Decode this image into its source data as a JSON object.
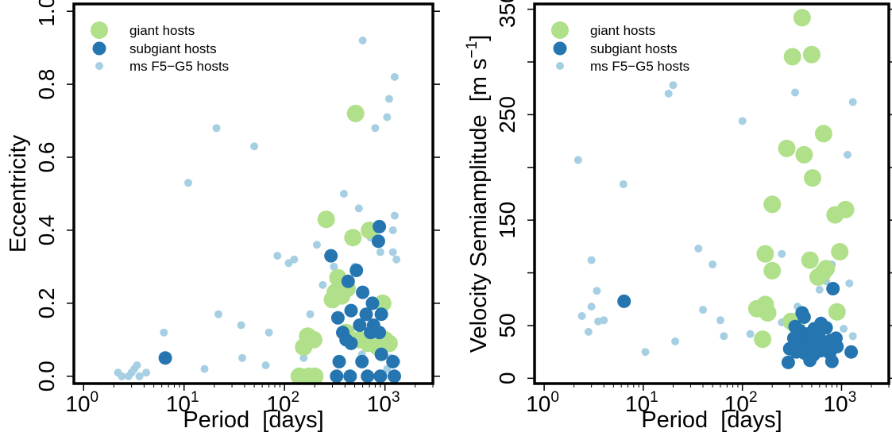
{
  "chart_data": [
    {
      "type": "scatter",
      "xscale": "log",
      "xlim": [
        0.8,
        3000
      ],
      "ylim": [
        -0.02,
        1.02
      ],
      "xlabel": "Period  [days]",
      "ylabel": "Eccentricity",
      "xticks": [
        {
          "value": 1,
          "base": "10",
          "exp": "0"
        },
        {
          "value": 10,
          "base": "10",
          "exp": "1"
        },
        {
          "value": 100,
          "base": "10",
          "exp": "2"
        },
        {
          "value": 1000,
          "base": "10",
          "exp": "3"
        }
      ],
      "yticks": [
        {
          "value": 0.0,
          "label": "0.0"
        },
        {
          "value": 0.2,
          "label": "0.2"
        },
        {
          "value": 0.4,
          "label": "0.4"
        },
        {
          "value": 0.6,
          "label": "0.6"
        },
        {
          "value": 0.8,
          "label": "0.8"
        },
        {
          "value": 1.0,
          "label": "1.0"
        }
      ],
      "legend": "top-left",
      "series": [
        {
          "name": "giant hosts",
          "color": "#b0e08a",
          "marker": "large",
          "points": [
            [
              510,
              0.72
            ],
            [
              260,
              0.43
            ],
            [
              480,
              0.38
            ],
            [
              700,
              0.4
            ],
            [
              300,
              0.21
            ],
            [
              320,
              0.23
            ],
            [
              340,
              0.27
            ],
            [
              370,
              0.22
            ],
            [
              420,
              0.24
            ],
            [
              950,
              0.2
            ],
            [
              170,
              0.11
            ],
            [
              155,
              0.08
            ],
            [
              195,
              0.1
            ],
            [
              410,
              0.12
            ],
            [
              560,
              0.1
            ],
            [
              680,
              0.09
            ],
            [
              1000,
              0.1
            ],
            [
              1100,
              0.09
            ],
            [
              850,
              0.08
            ],
            [
              140,
              0.0
            ],
            [
              175,
              0.0
            ],
            [
              200,
              0.0
            ]
          ]
        },
        {
          "name": "subgiant hosts",
          "color": "#2475b0",
          "marker": "medium",
          "points": [
            [
              6.5,
              0.05
            ],
            [
              290,
              0.33
            ],
            [
              520,
              0.29
            ],
            [
              430,
              0.26
            ],
            [
              880,
              0.41
            ],
            [
              860,
              0.37
            ],
            [
              600,
              0.23
            ],
            [
              750,
              0.2
            ],
            [
              460,
              0.18
            ],
            [
              650,
              0.17
            ],
            [
              920,
              0.17
            ],
            [
              340,
              0.16
            ],
            [
              560,
              0.14
            ],
            [
              770,
              0.14
            ],
            [
              380,
              0.12
            ],
            [
              720,
              0.12
            ],
            [
              880,
              0.12
            ],
            [
              410,
              0.1
            ],
            [
              460,
              0.09
            ],
            [
              920,
              0.06
            ],
            [
              350,
              0.04
            ],
            [
              590,
              0.04
            ],
            [
              1200,
              0.04
            ],
            [
              330,
              0.0
            ],
            [
              450,
              0.0
            ],
            [
              670,
              0.0
            ],
            [
              900,
              0.0
            ],
            [
              1240,
              0.0
            ]
          ]
        },
        {
          "name": "ms F5−G5 hosts",
          "color": "#a6cfe3",
          "marker": "small",
          "points": [
            [
              2.2,
              0.01
            ],
            [
              2.4,
              0.0
            ],
            [
              2.8,
              0.0
            ],
            [
              3.0,
              0.01
            ],
            [
              3.2,
              0.02
            ],
            [
              3.4,
              0.03
            ],
            [
              3.6,
              0.0
            ],
            [
              4.2,
              0.01
            ],
            [
              6.3,
              0.12
            ],
            [
              16,
              0.02
            ],
            [
              21,
              0.68
            ],
            [
              22,
              0.17
            ],
            [
              11,
              0.53
            ],
            [
              37,
              0.14
            ],
            [
              38,
              0.05
            ],
            [
              50,
              0.63
            ],
            [
              65,
              0.03
            ],
            [
              70,
              0.12
            ],
            [
              85,
              0.33
            ],
            [
              110,
              0.31
            ],
            [
              125,
              0.32
            ],
            [
              150,
              0.09
            ],
            [
              155,
              0.05
            ],
            [
              180,
              0.17
            ],
            [
              210,
              0.36
            ],
            [
              240,
              0.25
            ],
            [
              310,
              0.3
            ],
            [
              390,
              0.5
            ],
            [
              500,
              0.3
            ],
            [
              600,
              0.92
            ],
            [
              720,
              0.38
            ],
            [
              800,
              0.68
            ],
            [
              900,
              0.34
            ],
            [
              1050,
              0.71
            ],
            [
              1100,
              0.76
            ],
            [
              1200,
              0.34
            ],
            [
              1200,
              0.4
            ],
            [
              1250,
              0.82
            ],
            [
              1250,
              0.44
            ],
            [
              1300,
              0.32
            ],
            [
              1300,
              0.04
            ],
            [
              1050,
              0.02
            ],
            [
              550,
              0.46
            ],
            [
              960,
              0.18
            ],
            [
              590,
              0.06
            ],
            [
              1150,
              0.05
            ]
          ]
        }
      ]
    },
    {
      "type": "scatter",
      "xscale": "log",
      "xlim": [
        0.8,
        3000
      ],
      "ylim": [
        -5,
        355
      ],
      "xlabel": "Period  [days]",
      "ylabel_prefix": "Velocity Semiamplitude  [m s",
      "ylabel_exp": "−1",
      "ylabel_suffix": "]",
      "xticks": [
        {
          "value": 1,
          "base": "10",
          "exp": "0"
        },
        {
          "value": 10,
          "base": "10",
          "exp": "1"
        },
        {
          "value": 100,
          "base": "10",
          "exp": "2"
        },
        {
          "value": 1000,
          "base": "10",
          "exp": "3"
        }
      ],
      "yticks": [
        {
          "value": 0,
          "label": "0"
        },
        {
          "value": 50,
          "label": "50"
        },
        {
          "value": 150,
          "label": "150"
        },
        {
          "value": 250,
          "label": "250"
        },
        {
          "value": 350,
          "label": "350"
        }
      ],
      "legend": "top-left",
      "series": [
        {
          "name": "giant hosts",
          "color": "#b0e08a",
          "marker": "large",
          "points": [
            [
              400,
              342
            ],
            [
              320,
              305
            ],
            [
              500,
              307
            ],
            [
              660,
              232
            ],
            [
              280,
              218
            ],
            [
              420,
              212
            ],
            [
              510,
              190
            ],
            [
              200,
              165
            ],
            [
              1100,
              160
            ],
            [
              860,
              155
            ],
            [
              170,
              118
            ],
            [
              200,
              102
            ],
            [
              480,
              112
            ],
            [
              650,
              100
            ],
            [
              700,
              104
            ],
            [
              580,
              96
            ],
            [
              960,
              120
            ],
            [
              900,
              63
            ],
            [
              140,
              66
            ],
            [
              170,
              70
            ],
            [
              180,
              62
            ],
            [
              310,
              54
            ],
            [
              160,
              37
            ],
            [
              350,
              50
            ]
          ]
        },
        {
          "name": "subgiant hosts",
          "color": "#2475b0",
          "marker": "medium",
          "points": [
            [
              6.4,
              73
            ],
            [
              820,
              85
            ],
            [
              400,
              62
            ],
            [
              420,
              58
            ],
            [
              340,
              49
            ],
            [
              380,
              45
            ],
            [
              450,
              42
            ],
            [
              480,
              40
            ],
            [
              530,
              47
            ],
            [
              620,
              52
            ],
            [
              700,
              48
            ],
            [
              330,
              38
            ],
            [
              360,
              36
            ],
            [
              390,
              34
            ],
            [
              440,
              33
            ],
            [
              490,
              36
            ],
            [
              540,
              30
            ],
            [
              600,
              38
            ],
            [
              660,
              34
            ],
            [
              710,
              31
            ],
            [
              780,
              36
            ],
            [
              840,
              32
            ],
            [
              880,
              38
            ],
            [
              300,
              28
            ],
            [
              350,
              25
            ],
            [
              420,
              24
            ],
            [
              470,
              29
            ],
            [
              520,
              22
            ],
            [
              610,
              26
            ],
            [
              680,
              27
            ],
            [
              760,
              24
            ],
            [
              900,
              30
            ],
            [
              1250,
              25
            ],
            [
              290,
              15
            ],
            [
              480,
              17
            ],
            [
              800,
              16
            ]
          ]
        },
        {
          "name": "ms F5−G5 hosts",
          "color": "#a6cfe3",
          "marker": "small",
          "points": [
            [
              2.2,
              207
            ],
            [
              2.4,
              59
            ],
            [
              2.8,
              44
            ],
            [
              3.0,
              112
            ],
            [
              3.0,
              68
            ],
            [
              3.4,
              83
            ],
            [
              3.5,
              54
            ],
            [
              4.0,
              55
            ],
            [
              6.3,
              184
            ],
            [
              10.5,
              25
            ],
            [
              18,
              270
            ],
            [
              20,
              278
            ],
            [
              21,
              35
            ],
            [
              36,
              123
            ],
            [
              40,
              65
            ],
            [
              50,
              108
            ],
            [
              60,
              55
            ],
            [
              65,
              40
            ],
            [
              100,
              244
            ],
            [
              120,
              42
            ],
            [
              250,
              118
            ],
            [
              250,
              53
            ],
            [
              340,
              271
            ],
            [
              360,
              68
            ],
            [
              600,
              84
            ],
            [
              700,
              92
            ],
            [
              800,
              108
            ],
            [
              1050,
              47
            ],
            [
              1150,
              212
            ],
            [
              1200,
              90
            ],
            [
              1300,
              262
            ],
            [
              1300,
              40
            ]
          ]
        }
      ]
    }
  ]
}
